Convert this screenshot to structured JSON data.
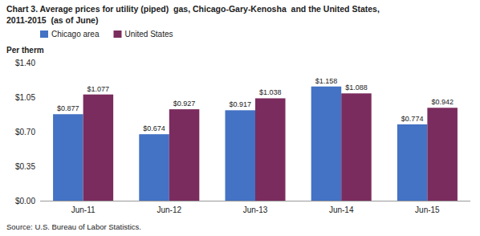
{
  "chart_data": {
    "type": "bar",
    "title": "Chart 3. Average prices for utility (piped)  gas, Chicago-Gary-Kenosha  and the United States,",
    "subtitle": "2011-2015  (as of June)",
    "y_label": "Per therm",
    "source": "Source: U.S. Bureau of Labor Statistics.",
    "categories": [
      "Jun-11",
      "Jun-12",
      "Jun-13",
      "Jun-14",
      "Jun-15"
    ],
    "series": [
      {
        "name": "Chicago area",
        "color": "#4472C4",
        "values": [
          0.877,
          0.674,
          0.917,
          1.158,
          0.774
        ],
        "value_labels": [
          "$0.877",
          "$0.674",
          "$0.917",
          "$1.158",
          "$0.774"
        ]
      },
      {
        "name": "United States",
        "color": "#7B2C5E",
        "values": [
          1.077,
          0.927,
          1.038,
          1.088,
          0.942
        ],
        "value_labels": [
          "$1.077",
          "$0.927",
          "$1.038",
          "$1.088",
          "$0.942"
        ]
      }
    ],
    "ylim": [
      0,
      1.4
    ],
    "yticks": [
      {
        "value": 0.0,
        "label": "$0.00"
      },
      {
        "value": 0.35,
        "label": "$0.35"
      },
      {
        "value": 0.7,
        "label": "$0.70"
      },
      {
        "value": 1.05,
        "label": "$1.05"
      },
      {
        "value": 1.4,
        "label": "$1.40"
      }
    ],
    "grid": false,
    "legend": "top-left",
    "data_labels": true
  }
}
